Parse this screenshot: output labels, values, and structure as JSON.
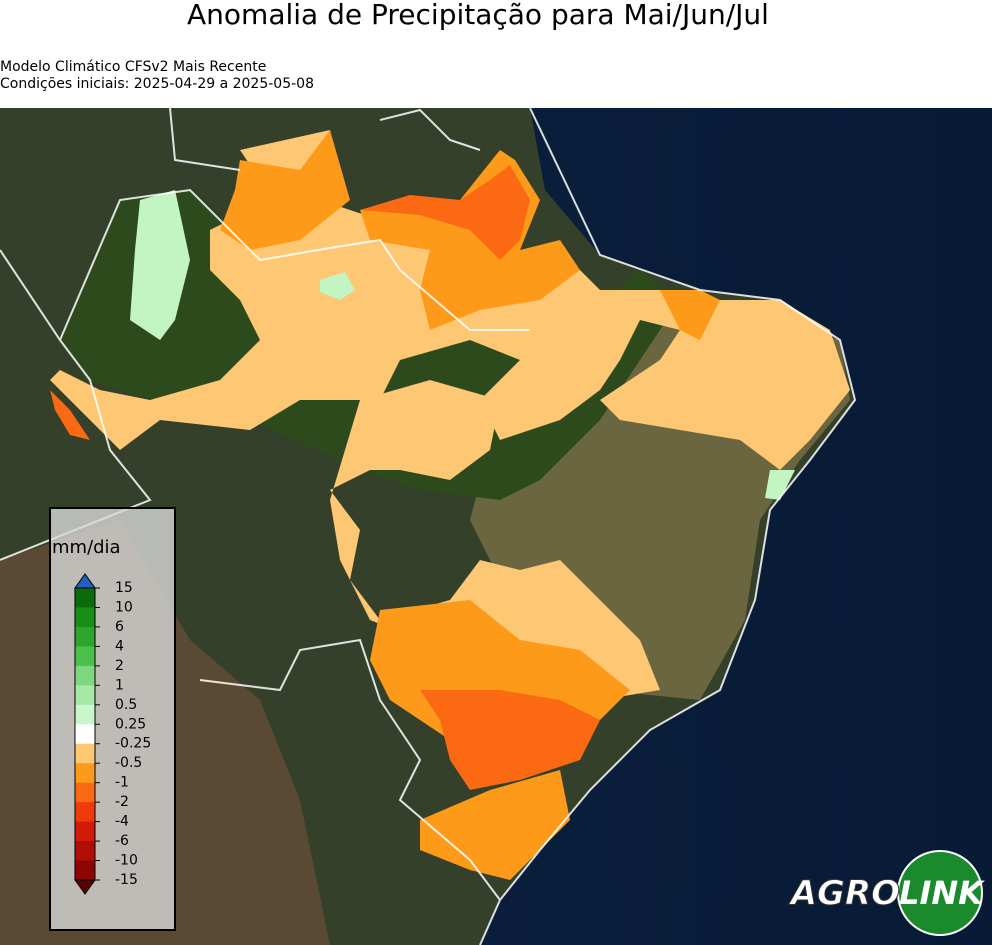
{
  "title": "Anomalia de Precipitação para Mai/Jun/Jul",
  "subtitle": [
    "Modelo Climático CFSv2 Mais Recente",
    "Condições iniciais: 2025-04-29 a 2025-05-08"
  ],
  "legend": {
    "label": "mm/dia",
    "levels": [
      15,
      10,
      6,
      4,
      2,
      1,
      0.5,
      0.25,
      -0.25,
      -0.5,
      -1,
      -2,
      -4,
      -6,
      -10,
      -15
    ],
    "colors": [
      "#0b6b0b",
      "#188e18",
      "#2ba52b",
      "#4cc04c",
      "#7ed67e",
      "#a6e8a6",
      "#cbf6cb",
      "#ffffff",
      "#fec773",
      "#fe9a1a",
      "#fb6a12",
      "#ef3a0c",
      "#d11a08",
      "#b00d05",
      "#8c0503"
    ],
    "extend_colors": [
      "#2060c0",
      "#5a0202"
    ]
  },
  "logo": {
    "text": [
      "AGRO",
      "LINK"
    ]
  }
}
